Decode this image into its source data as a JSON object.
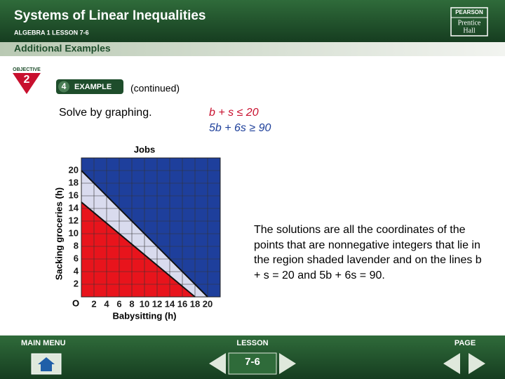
{
  "header": {
    "title": "Systems of Linear Inequalities",
    "subtitle": "ALGEBRA 1  LESSON 7-6",
    "logo": [
      "PEARSON",
      "Prentice",
      "Hall"
    ]
  },
  "section": "Additional Examples",
  "objective": {
    "label": "OBJECTIVE",
    "number": "2"
  },
  "example": {
    "number": "4",
    "label": "EXAMPLE",
    "note": "(continued)"
  },
  "prompt": "Solve by graphing.",
  "inequalities": [
    {
      "text": "b + s ≤ 20",
      "color": "#c8102e"
    },
    {
      "text": "5b + 6s ≥ 90",
      "color": "#1d3f9a"
    }
  ],
  "graph": {
    "title": "Jobs",
    "x_label": "Babysitting (h)",
    "y_label": "Sacking groceries (h)",
    "origin_label": "O",
    "xlim": [
      0,
      22
    ],
    "ylim": [
      0,
      22
    ],
    "xticks": [
      2,
      4,
      6,
      8,
      10,
      12,
      14,
      16,
      18,
      20
    ],
    "yticks": [
      2,
      4,
      6,
      8,
      10,
      12,
      14,
      16,
      18,
      20
    ],
    "grid": true,
    "boundaries": [
      {
        "x_intercept": 20,
        "y_intercept": 20
      },
      {
        "x_intercept": 18,
        "y_intercept": 15
      }
    ],
    "colors": {
      "above": "#1e3f9c",
      "between": "#d9dbee",
      "below": "#e8141c"
    }
  },
  "explanation": "The solutions are all the coordinates of the points that are nonnegative integers that lie in the region shaded lavender and on the lines b + s = 20 and 5b + 6s = 90.",
  "footer": {
    "main_menu": "MAIN MENU",
    "lesson": "LESSON",
    "page": "PAGE",
    "lesson_number": "7-6"
  }
}
